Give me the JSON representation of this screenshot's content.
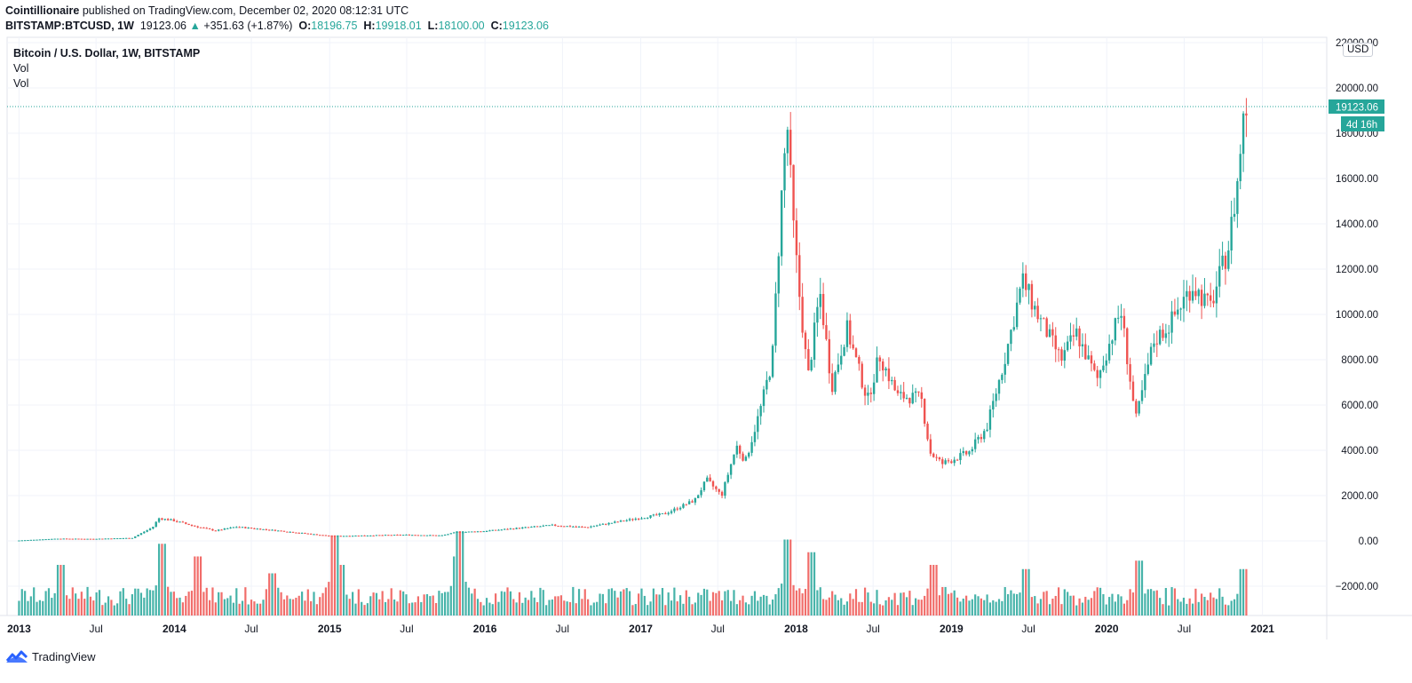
{
  "header": {
    "author": "Cointillionaire",
    "published_text": " published on TradingView.com, December 02, 2020 08:12:31 UTC",
    "symbol": "BITSTAMP:BTCUSD, 1W",
    "price": "19123.06",
    "arrow": "▲",
    "change": "+351.63 (+1.87%)",
    "o_label": "O:",
    "o_value": "18196.75",
    "h_label": "H:",
    "h_value": "19918.01",
    "l_label": "L:",
    "l_value": "18100.00",
    "c_label": "C:",
    "c_value": "19123.06"
  },
  "legend": {
    "title": "Bitcoin / U.S. Dollar, 1W, BITSTAMP",
    "vol1": "Vol",
    "vol2": "Vol"
  },
  "price_axis": {
    "currency_button": "USD"
  },
  "footer": {
    "brand": "TradingView"
  },
  "colors": {
    "up": "#26a69a",
    "down": "#ef5350",
    "grid": "#f0f3fa",
    "axis_text": "#131722"
  },
  "chart_data": {
    "type": "candlestick",
    "title": "Bitcoin / U.S. Dollar, 1W, BITSTAMP",
    "x_ticks": [
      "2013",
      "Jul",
      "2014",
      "Jul",
      "2015",
      "Jul",
      "2016",
      "Jul",
      "2017",
      "Jul",
      "2018",
      "Jul",
      "2019",
      "Jul",
      "2020",
      "Jul",
      "2021"
    ],
    "x_tick_dates": [
      "2013-01-01",
      "2013-07-01",
      "2014-01-01",
      "2014-07-01",
      "2015-01-01",
      "2015-07-01",
      "2016-01-01",
      "2016-07-01",
      "2017-01-01",
      "2017-07-01",
      "2018-01-01",
      "2018-07-01",
      "2019-01-01",
      "2019-07-01",
      "2020-01-01",
      "2020-07-01",
      "2021-01-01"
    ],
    "y_ticks": [
      "22000.00",
      "20000.00",
      "18000.00",
      "16000.00",
      "14000.00",
      "12000.00",
      "10000.00",
      "8000.00",
      "6000.00",
      "4000.00",
      "2000.00",
      "0.00",
      "−2000.00"
    ],
    "y_tick_values": [
      22000,
      20000,
      18000,
      16000,
      14000,
      12000,
      10000,
      8000,
      6000,
      4000,
      2000,
      0,
      -2000
    ],
    "ylim": [
      -3300,
      22500
    ],
    "last_price": {
      "label": "19123.06",
      "value": 19123.06,
      "countdown": "4d 16h"
    },
    "grid": true,
    "price_path": [
      [
        "2013-01-01",
        13
      ],
      [
        "2013-04-08",
        100
      ],
      [
        "2013-07-01",
        90
      ],
      [
        "2013-10-01",
        130
      ],
      [
        "2013-11-18",
        600
      ],
      [
        "2013-12-02",
        1000
      ],
      [
        "2014-01-06",
        900
      ],
      [
        "2014-02-24",
        650
      ],
      [
        "2014-04-14",
        450
      ],
      [
        "2014-06-02",
        620
      ],
      [
        "2014-09-15",
        440
      ],
      [
        "2015-01-12",
        210
      ],
      [
        "2015-04-01",
        240
      ],
      [
        "2015-07-06",
        270
      ],
      [
        "2015-09-28",
        240
      ],
      [
        "2015-11-02",
        380
      ],
      [
        "2016-01-04",
        430
      ],
      [
        "2016-06-13",
        690
      ],
      [
        "2016-09-01",
        600
      ],
      [
        "2017-01-02",
        1000
      ],
      [
        "2017-03-06",
        1200
      ],
      [
        "2017-05-15",
        1800
      ],
      [
        "2017-06-12",
        2700
      ],
      [
        "2017-07-17",
        2000
      ],
      [
        "2017-08-21",
        4200
      ],
      [
        "2017-09-11",
        3500
      ],
      [
        "2017-10-16",
        5800
      ],
      [
        "2017-11-13",
        8000
      ],
      [
        "2017-12-04",
        15000
      ],
      [
        "2017-12-18",
        18500
      ],
      [
        "2018-01-01",
        14000
      ],
      [
        "2018-01-15",
        11000
      ],
      [
        "2018-02-05",
        7200
      ],
      [
        "2018-03-05",
        11000
      ],
      [
        "2018-04-02",
        6800
      ],
      [
        "2018-05-07",
        9400
      ],
      [
        "2018-06-25",
        6200
      ],
      [
        "2018-07-23",
        8200
      ],
      [
        "2018-09-03",
        6400
      ],
      [
        "2018-10-29",
        6300
      ],
      [
        "2018-11-19",
        3900
      ],
      [
        "2018-12-17",
        3400
      ],
      [
        "2019-02-18",
        3900
      ],
      [
        "2019-04-01",
        5000
      ],
      [
        "2019-05-13",
        8000
      ],
      [
        "2019-06-24",
        11500
      ],
      [
        "2019-07-29",
        10000
      ],
      [
        "2019-09-23",
        8000
      ],
      [
        "2019-10-28",
        9200
      ],
      [
        "2019-12-16",
        7100
      ],
      [
        "2020-02-10",
        10200
      ],
      [
        "2020-03-16",
        5300
      ],
      [
        "2020-04-27",
        8800
      ],
      [
        "2020-06-01",
        9500
      ],
      [
        "2020-07-27",
        11300
      ],
      [
        "2020-09-07",
        10300
      ],
      [
        "2020-10-19",
        12900
      ],
      [
        "2020-11-09",
        15600
      ],
      [
        "2020-11-23",
        18500
      ],
      [
        "2020-11-30",
        19123.06
      ]
    ],
    "volume_spikes": [
      [
        "2013-04-08",
        0.6
      ],
      [
        "2013-12-02",
        0.85
      ],
      [
        "2014-02-24",
        0.7
      ],
      [
        "2014-08-18",
        0.5
      ],
      [
        "2015-01-12",
        0.95
      ],
      [
        "2015-01-26",
        0.6
      ],
      [
        "2015-11-02",
        1.0
      ],
      [
        "2015-10-26",
        0.7
      ],
      [
        "2017-12-11",
        0.9
      ],
      [
        "2018-02-05",
        0.75
      ],
      [
        "2018-11-19",
        0.6
      ],
      [
        "2019-06-24",
        0.55
      ],
      [
        "2020-03-16",
        0.65
      ],
      [
        "2020-11-16",
        0.55
      ]
    ]
  }
}
